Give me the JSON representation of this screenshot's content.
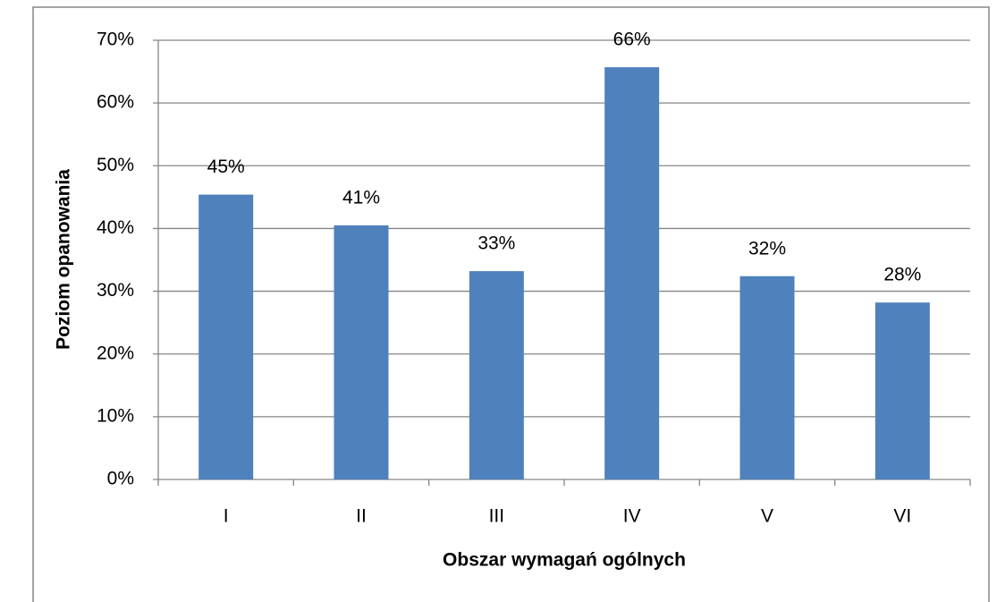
{
  "chart_data": {
    "type": "bar",
    "x_label": "Obszar wymagań ogólnych",
    "y_label": "Poziom opanowania",
    "categories": [
      "I",
      "II",
      "III",
      "IV",
      "V",
      "VI"
    ],
    "values": [
      45.4,
      40.5,
      33.2,
      65.7,
      32.4,
      28.2
    ],
    "value_labels": [
      "45%",
      "41%",
      "33%",
      "66%",
      "32%",
      "28%"
    ],
    "color": "#4f81bd",
    "ylim": [
      0,
      70
    ],
    "yticks": [
      {
        "value": 0,
        "label": "0%"
      },
      {
        "value": 10,
        "label": "10%"
      },
      {
        "value": 20,
        "label": "20%"
      },
      {
        "value": 30,
        "label": "30%"
      },
      {
        "value": 40,
        "label": "40%"
      },
      {
        "value": 50,
        "label": "50%"
      },
      {
        "value": 60,
        "label": "60%"
      },
      {
        "value": 70,
        "label": "70%"
      }
    ],
    "grid": true
  }
}
